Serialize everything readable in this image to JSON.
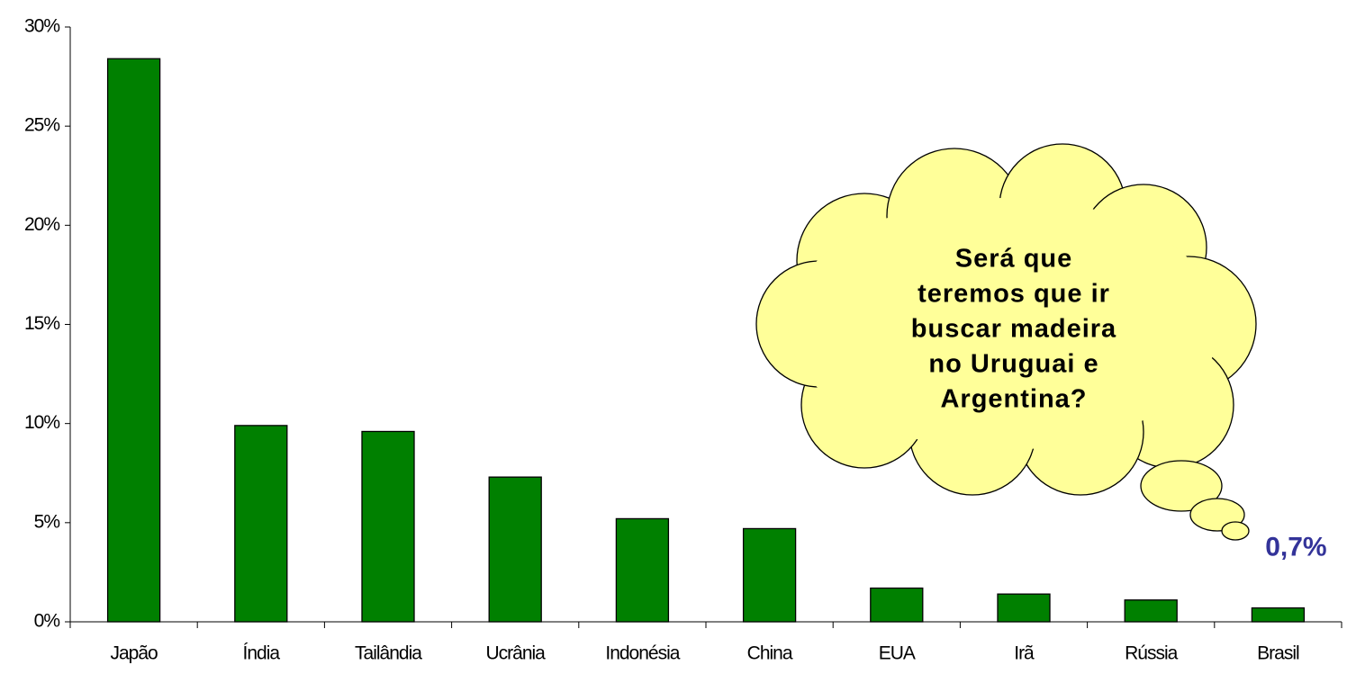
{
  "chart_data": {
    "type": "bar",
    "categories": [
      "Japão",
      "Índia",
      "Tailândia",
      "Ucrânia",
      "Indonésia",
      "China",
      "EUA",
      "Irã",
      "Rússia",
      "Brasil"
    ],
    "values": [
      28.4,
      9.9,
      9.6,
      7.3,
      5.2,
      4.7,
      1.7,
      1.4,
      1.1,
      0.7
    ],
    "value_labels": [
      null,
      null,
      null,
      null,
      null,
      null,
      null,
      null,
      null,
      "0,7%"
    ],
    "color": "#008000",
    "ylim": [
      0,
      30
    ],
    "yticks": [
      {
        "value": 0,
        "label": "0%"
      },
      {
        "value": 5,
        "label": "5%"
      },
      {
        "value": 10,
        "label": "10%"
      },
      {
        "value": 15,
        "label": "15%"
      },
      {
        "value": 20,
        "label": "20%"
      },
      {
        "value": 25,
        "label": "25%"
      },
      {
        "value": 30,
        "label": "30%"
      }
    ],
    "grid": false,
    "annotation": [
      "Será que",
      "teremos que ir",
      "buscar madeira",
      "no Uruguai e",
      "Argentina?"
    ]
  }
}
